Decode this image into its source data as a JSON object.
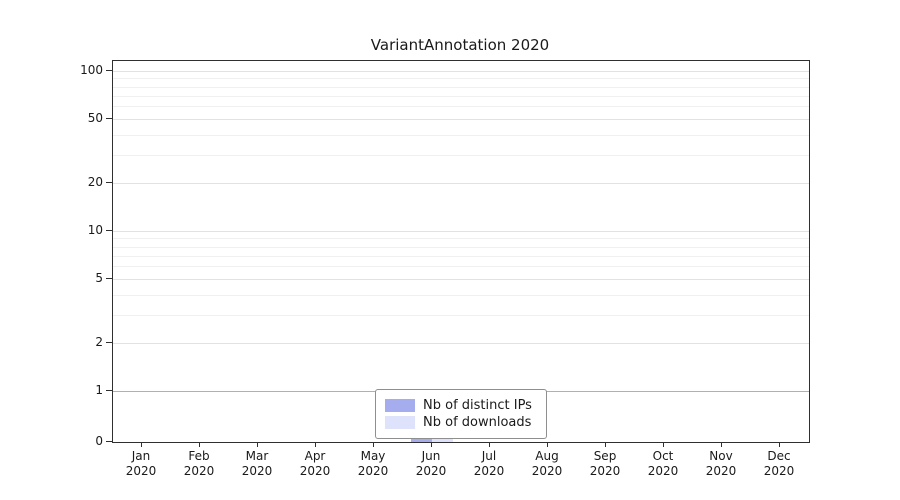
{
  "title": "VariantAnnotation 2020",
  "chart_data": {
    "type": "bar",
    "scale": "log",
    "year": "2020",
    "categories": [
      "Jan",
      "Feb",
      "Mar",
      "Apr",
      "May",
      "Jun",
      "Jul",
      "Aug",
      "Sep",
      "Oct",
      "Nov",
      "Dec"
    ],
    "series": [
      {
        "name": "Nb of distinct IPs",
        "color": "#a5adee",
        "values": [
          0,
          0,
          0,
          0,
          0,
          1,
          0,
          0,
          0,
          0,
          0,
          0
        ]
      },
      {
        "name": "Nb of downloads",
        "color": "#dfe2fb",
        "values": [
          0,
          0,
          0,
          0,
          0,
          1,
          0,
          0,
          0,
          0,
          0,
          0
        ]
      }
    ],
    "yticks": [
      0,
      1,
      2,
      5,
      10,
      20,
      50,
      100
    ],
    "minor_yticks": [
      3,
      4,
      6,
      7,
      8,
      9,
      30,
      40,
      60,
      70,
      80,
      90
    ],
    "ylim": [
      0,
      100
    ],
    "xlabel": "",
    "ylabel": "",
    "grid": "horizontal",
    "legend_position": "bottom-center"
  }
}
